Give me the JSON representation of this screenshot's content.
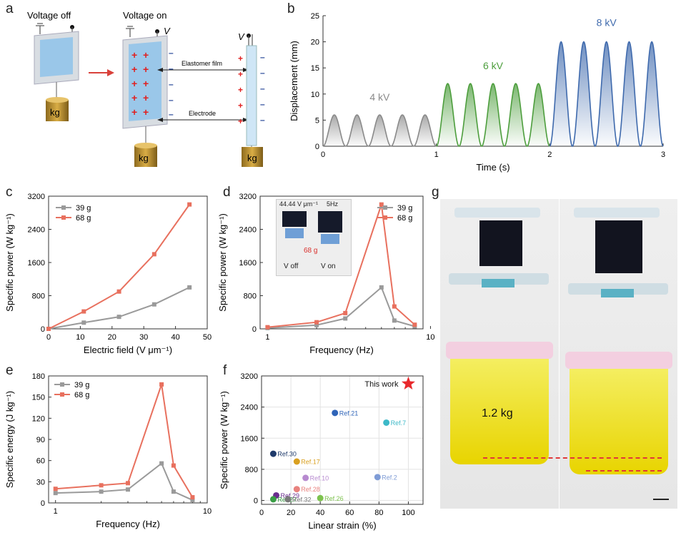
{
  "panel_labels": [
    "a",
    "b",
    "c",
    "d",
    "e",
    "f",
    "g"
  ],
  "panel_a": {
    "voltage_off": "Voltage off",
    "voltage_on": "Voltage on",
    "v_symbol": "V",
    "elastomer_label": "Elastomer film",
    "electrode_label": "Electrode",
    "weight_label": "kg",
    "plus": "+",
    "minus": "–"
  },
  "panel_g": {
    "weight_text": "1.2 kg"
  },
  "panel_d_inset": {
    "field_text": "44.44 V μm⁻¹",
    "freq_text": "5Hz",
    "mass_text": "68 g",
    "voff": "V off",
    "von": "V on"
  },
  "chart_data": [
    {
      "id": "b",
      "type": "line",
      "xlabel": "Time (s)",
      "ylabel": "Displacement (mm)",
      "xlim": [
        0,
        3
      ],
      "ylim": [
        0,
        25
      ],
      "xticks": [
        0,
        1,
        2,
        3
      ],
      "yticks": [
        0,
        5,
        10,
        15,
        20,
        25
      ],
      "segments": [
        {
          "name": "4 kV",
          "color": "#8a8a8a",
          "amplitude": 6,
          "t_start": 0,
          "t_end": 1,
          "cycles": 5
        },
        {
          "name": "6 kV",
          "color": "#4d9e3d",
          "amplitude": 12,
          "t_start": 1,
          "t_end": 2,
          "cycles": 5
        },
        {
          "name": "8 kV",
          "color": "#3f6aad",
          "amplitude": 20,
          "t_start": 2,
          "t_end": 3,
          "cycles": 5
        }
      ]
    },
    {
      "id": "c",
      "type": "line",
      "xlabel": "Electric field (V μm⁻¹)",
      "ylabel": "Specific power (W kg⁻¹)",
      "xlim": [
        0,
        50
      ],
      "ylim": [
        0,
        3200
      ],
      "xticks": [
        0,
        10,
        20,
        30,
        40,
        50
      ],
      "yticks": [
        0,
        800,
        1600,
        2400,
        3200
      ],
      "legend": "top-left",
      "series": [
        {
          "name": "39 g",
          "color": "#9a9a9a",
          "x": [
            0,
            11.1,
            22.2,
            33.3,
            44.4
          ],
          "y": [
            0,
            150,
            290,
            590,
            1000
          ]
        },
        {
          "name": "68 g",
          "color": "#e8705e",
          "x": [
            0,
            11.1,
            22.2,
            33.3,
            44.4
          ],
          "y": [
            0,
            420,
            900,
            1800,
            3000
          ]
        }
      ]
    },
    {
      "id": "d",
      "type": "line",
      "xlabel": "Frequency (Hz)",
      "ylabel": "Specific power (W kg⁻¹)",
      "xscale": "log",
      "xlim": [
        0.9,
        9
      ],
      "ylim": [
        0,
        3200
      ],
      "xticks": [
        1,
        10
      ],
      "yticks": [
        0,
        800,
        1600,
        2400,
        3200
      ],
      "legend": "top-right",
      "series": [
        {
          "name": "39 g",
          "color": "#9a9a9a",
          "x": [
            1,
            2,
            3,
            5,
            6,
            8
          ],
          "y": [
            20,
            90,
            250,
            1000,
            200,
            60
          ]
        },
        {
          "name": "68 g",
          "color": "#e8705e",
          "x": [
            1,
            2,
            3,
            5,
            6,
            8
          ],
          "y": [
            40,
            160,
            380,
            3000,
            540,
            100
          ]
        }
      ]
    },
    {
      "id": "e",
      "type": "line",
      "xlabel": "Frequency (Hz)",
      "ylabel": "Specific energy (J kg⁻¹)",
      "xscale": "log",
      "xlim": [
        0.9,
        10
      ],
      "ylim": [
        0,
        180
      ],
      "xticks": [
        1,
        10
      ],
      "yticks": [
        0,
        30,
        60,
        90,
        120,
        150,
        180
      ],
      "legend": "top-left",
      "series": [
        {
          "name": "39 g",
          "color": "#9a9a9a",
          "x": [
            1,
            2,
            3,
            5,
            6,
            8
          ],
          "y": [
            14,
            16,
            19,
            56,
            16,
            4
          ]
        },
        {
          "name": "68 g",
          "color": "#e8705e",
          "x": [
            1,
            2,
            3,
            5,
            6,
            8
          ],
          "y": [
            20,
            25,
            28,
            168,
            53,
            8
          ]
        }
      ]
    },
    {
      "id": "f",
      "type": "scatter",
      "xlabel": "Linear strain (%)",
      "ylabel": "Specific power (W kg⁻¹)",
      "xlim": [
        0,
        110
      ],
      "ylim": [
        -100,
        3200
      ],
      "xticks": [
        0,
        20,
        40,
        60,
        80,
        100
      ],
      "yticks": [
        0,
        800,
        1600,
        2400,
        3200
      ],
      "points": [
        {
          "label": "This work",
          "x": 100,
          "y": 3000,
          "color": "#e8282c",
          "marker": "star"
        },
        {
          "label": "Ref.21",
          "x": 50,
          "y": 2250,
          "color": "#2f64b8"
        },
        {
          "label": "Ref.7",
          "x": 85,
          "y": 2000,
          "color": "#3db9c8"
        },
        {
          "label": "Ref.30",
          "x": 8,
          "y": 1200,
          "color": "#1f3a6b"
        },
        {
          "label": "Ref.17",
          "x": 24,
          "y": 1000,
          "color": "#d9a020"
        },
        {
          "label": "Ref.10",
          "x": 30,
          "y": 580,
          "color": "#b78ad0"
        },
        {
          "label": "Ref.2",
          "x": 79,
          "y": 600,
          "color": "#7f9cd6"
        },
        {
          "label": "Ref.28",
          "x": 24,
          "y": 290,
          "color": "#e8827e"
        },
        {
          "label": "Ref.29",
          "x": 10,
          "y": 130,
          "color": "#6a2d8f"
        },
        {
          "label": "Ref.27",
          "x": 8,
          "y": 30,
          "color": "#3a9e46"
        },
        {
          "label": "Ref.32",
          "x": 18,
          "y": 30,
          "color": "#7a7a7a"
        },
        {
          "label": "Ref.26",
          "x": 40,
          "y": 60,
          "color": "#7dc24e"
        }
      ]
    }
  ]
}
